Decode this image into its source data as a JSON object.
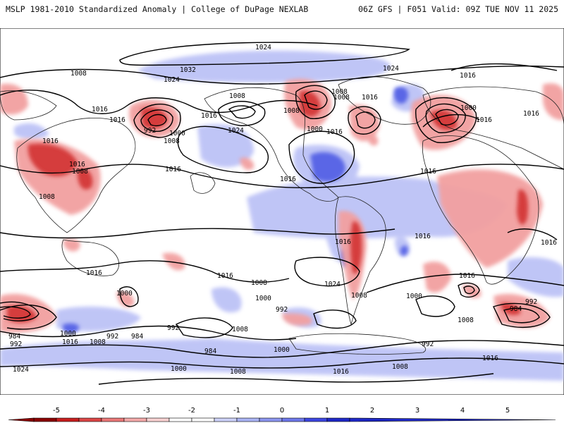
{
  "header": {
    "title_left": "MSLP 1981-2010 Standardized Anomaly | College of DuPage NEXLAB",
    "title_right": "06Z GFS | F051 Valid: 09Z TUE NOV 11 2025"
  },
  "map": {
    "projection": "equirectangular",
    "positive_color": "#d23232",
    "negative_color": "#2a3cdc",
    "isobar_labels": [
      "1024",
      "1008",
      "1032",
      "1024",
      "1024",
      "1016",
      "1016",
      "1016",
      "1008",
      "992",
      "1000",
      "1008",
      "1008",
      "1016",
      "1016",
      "1024",
      "1016",
      "1008",
      "1016",
      "1016",
      "1000",
      "1016",
      "1008",
      "1016",
      "1008",
      "1016",
      "1016",
      "1008",
      "1016",
      "1016",
      "1016",
      "1016",
      "1000",
      "1016",
      "1016",
      "1008",
      "1024",
      "1000",
      "992",
      "1008",
      "1000",
      "1016",
      "992",
      "1000",
      "1008",
      "992",
      "984",
      "984",
      "992",
      "1008",
      "1016",
      "1000",
      "992",
      "984",
      "984",
      "1000",
      "1008",
      "1016",
      "1008",
      "1024",
      "1000",
      "1008",
      "992",
      "1016"
    ]
  },
  "colorbar": {
    "ticks": [
      "-5",
      "-4",
      "-3",
      "-2",
      "-1",
      "0",
      "1",
      "2",
      "3",
      "4",
      "5"
    ],
    "colors": [
      "#8b0000",
      "#c81e1e",
      "#dc4646",
      "#eb7878",
      "#f5aaaa",
      "#fad2d2",
      "#ffffff",
      "#ffffff",
      "#cdd2fa",
      "#aab4f5",
      "#8c96f0",
      "#6e78eb",
      "#3c46e1",
      "#1e28c8"
    ]
  }
}
